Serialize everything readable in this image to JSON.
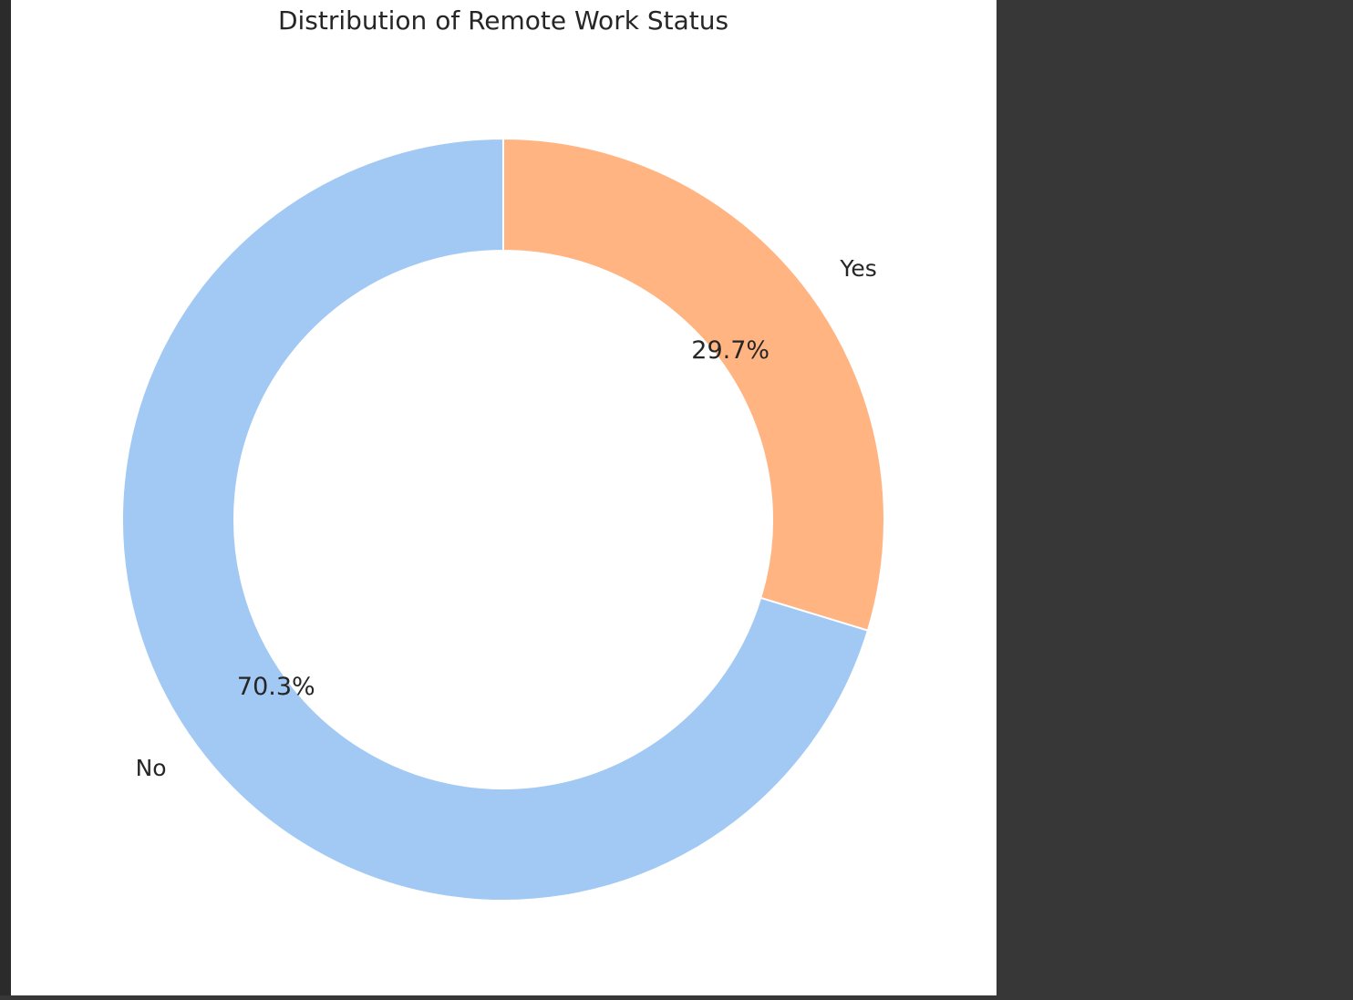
{
  "chart_data": {
    "type": "pie",
    "donut": true,
    "title": "Distribution of Remote Work Status",
    "slices": [
      {
        "label": "Yes",
        "value": 29.7,
        "pct_label": "29.7%",
        "color": "#ffb482"
      },
      {
        "label": "No",
        "value": 70.3,
        "pct_label": "70.3%",
        "color": "#a1c9f4"
      }
    ],
    "start_angle_deg": 90,
    "direction": "clockwise",
    "wedge_edge_color": "#ffffff"
  },
  "theme": {
    "figure_background": "#ffffff",
    "app_background": "#373737",
    "text_color": "#262626"
  }
}
